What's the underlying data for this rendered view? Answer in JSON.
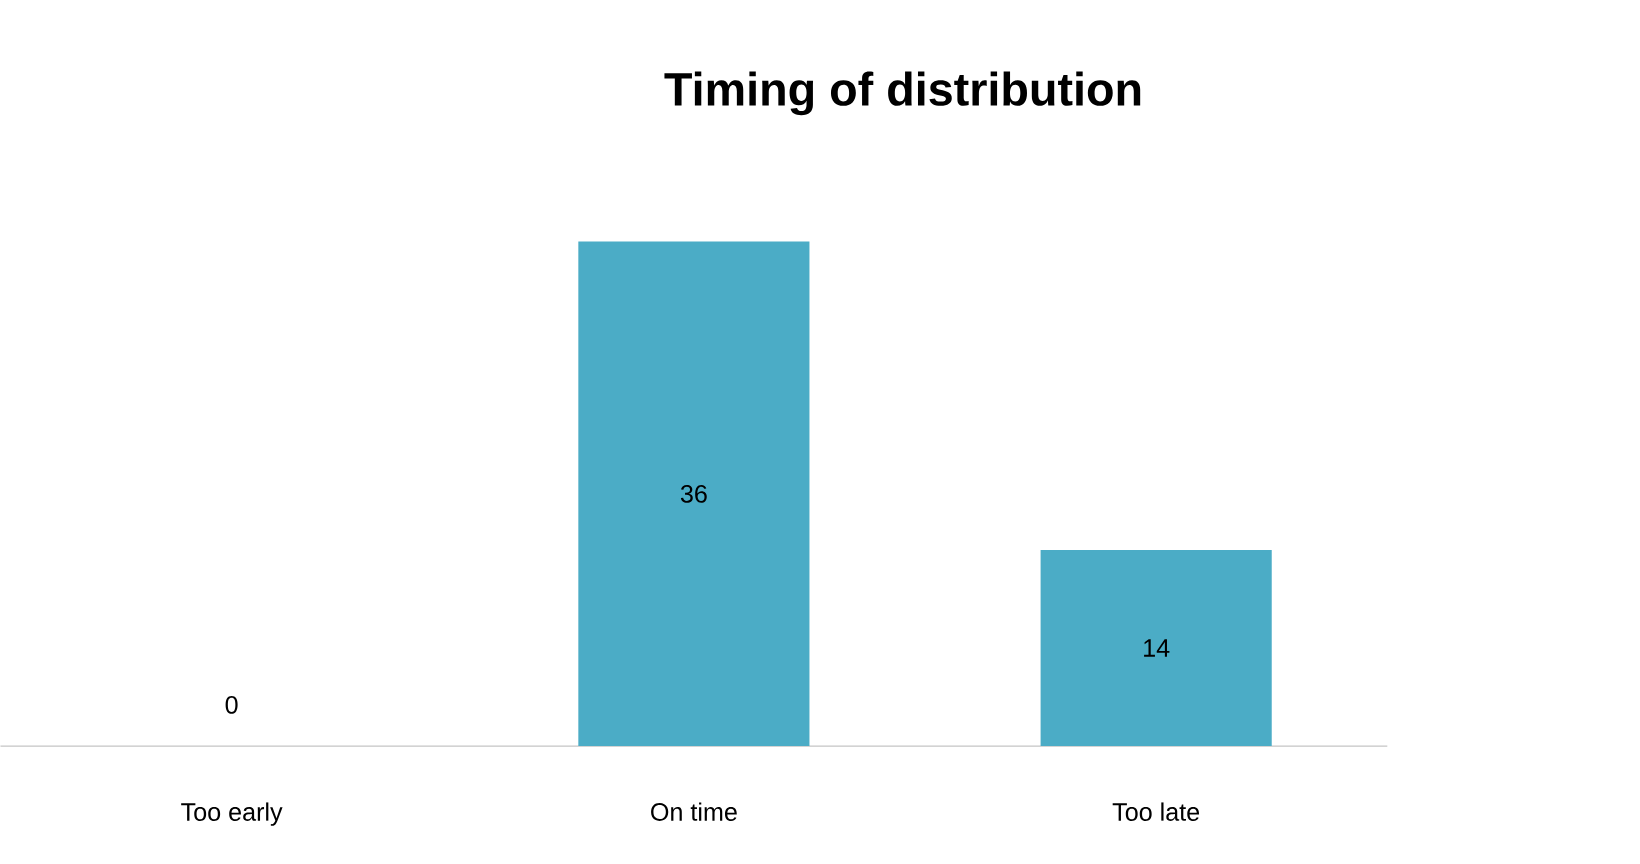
{
  "chart_data": {
    "type": "bar",
    "title": "Timing of distribution",
    "categories": [
      "Too early",
      "On time",
      "Too late"
    ],
    "values": [
      0,
      36,
      14
    ],
    "color": "#4bacc6",
    "data_labels": true
  }
}
